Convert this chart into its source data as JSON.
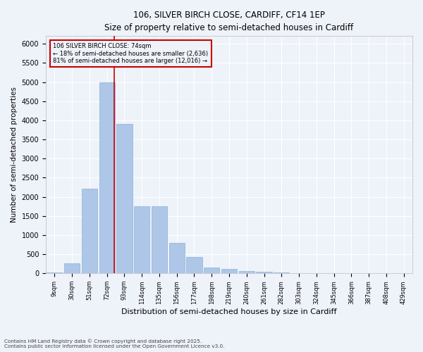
{
  "title_line1": "106, SILVER BIRCH CLOSE, CARDIFF, CF14 1EP",
  "title_line2": "Size of property relative to semi-detached houses in Cardiff",
  "xlabel": "Distribution of semi-detached houses by size in Cardiff",
  "ylabel": "Number of semi-detached properties",
  "categories": [
    "9sqm",
    "30sqm",
    "51sqm",
    "72sqm",
    "93sqm",
    "114sqm",
    "135sqm",
    "156sqm",
    "177sqm",
    "198sqm",
    "219sqm",
    "240sqm",
    "261sqm",
    "282sqm",
    "303sqm",
    "324sqm",
    "345sqm",
    "366sqm",
    "387sqm",
    "408sqm",
    "429sqm"
  ],
  "values": [
    20,
    270,
    2220,
    5000,
    3900,
    1750,
    1750,
    800,
    430,
    160,
    120,
    65,
    40,
    15,
    10,
    5,
    5,
    5,
    0,
    5,
    0
  ],
  "bar_color": "#aec6e8",
  "bar_edge_color": "#8ab4d8",
  "property_bin_index": 3,
  "property_label": "106 SILVER BIRCH CLOSE: 74sqm",
  "pct_smaller": 18,
  "pct_larger": 81,
  "count_smaller": 2636,
  "count_larger": 12016,
  "vline_color": "#cc0000",
  "annotation_box_color": "#cc0000",
  "ylim": [
    0,
    6200
  ],
  "yticks": [
    0,
    500,
    1000,
    1500,
    2000,
    2500,
    3000,
    3500,
    4000,
    4500,
    5000,
    5500,
    6000
  ],
  "background_color": "#eef2f9",
  "grid_color": "#ffffff",
  "footer_line1": "Contains HM Land Registry data © Crown copyright and database right 2025.",
  "footer_line2": "Contains public sector information licensed under the Open Government Licence v3.0."
}
